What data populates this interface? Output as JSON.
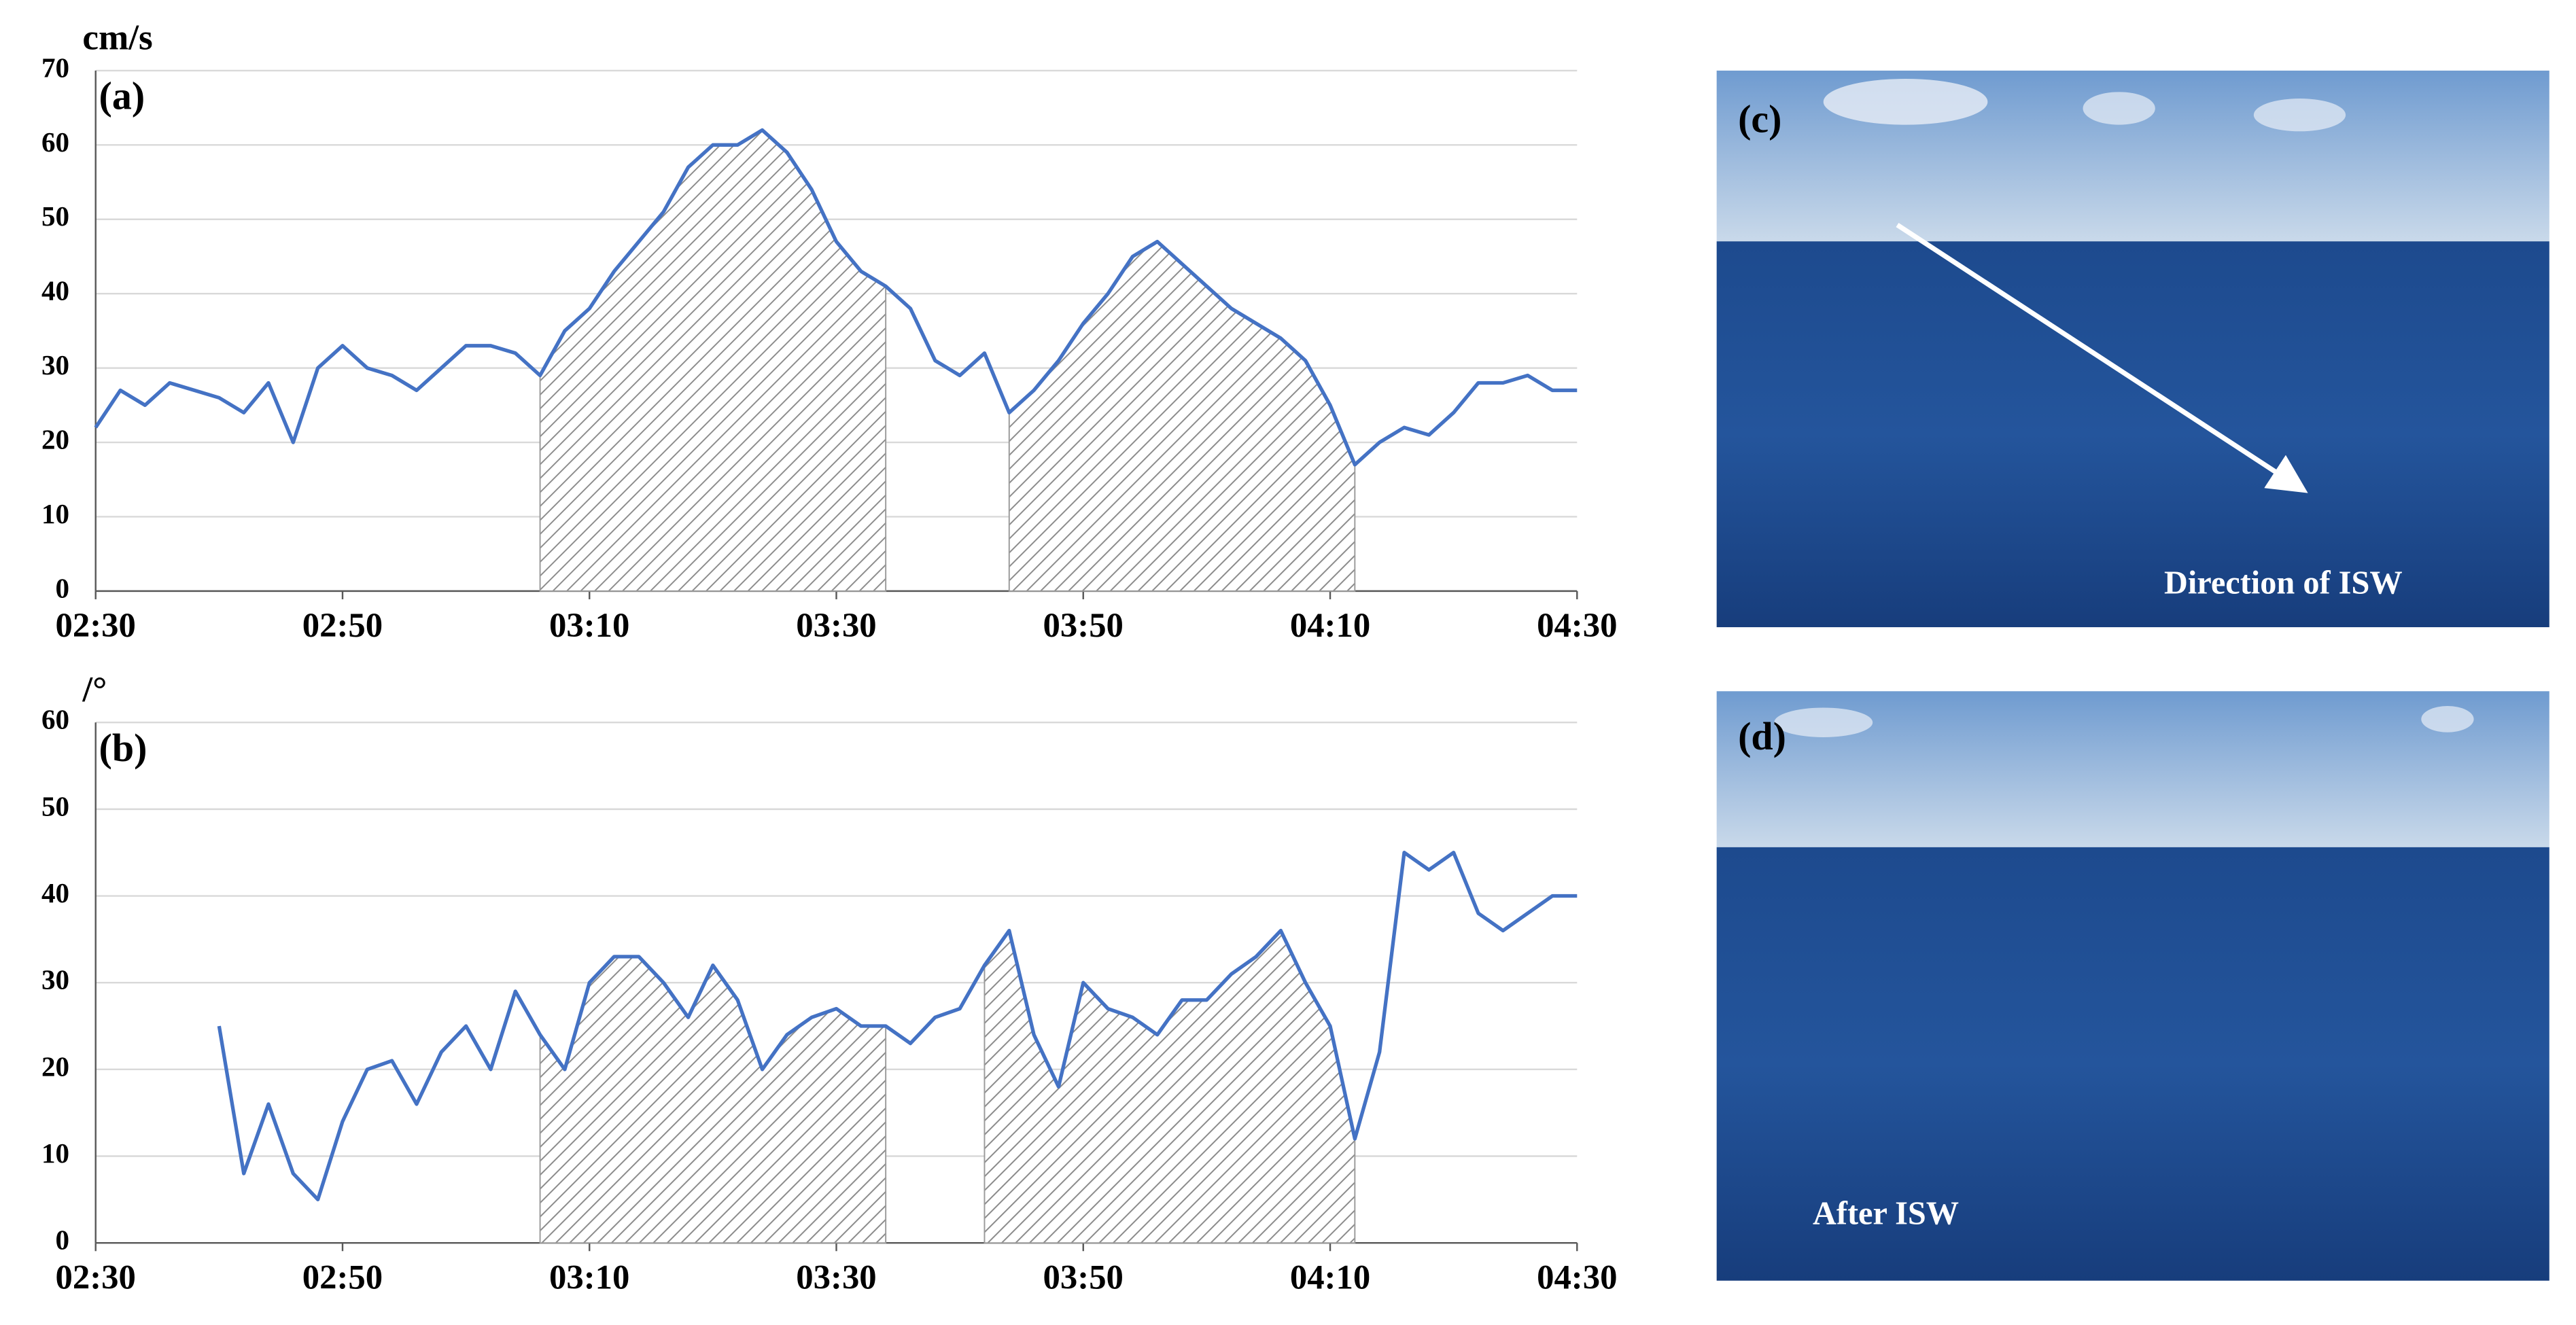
{
  "chart_data": [
    {
      "type": "line",
      "panel_label": "(a)",
      "y_label": "cm/s",
      "x": [
        "02:30",
        "02:32",
        "02:34",
        "02:36",
        "02:38",
        "02:40",
        "02:42",
        "02:44",
        "02:46",
        "02:48",
        "02:50",
        "02:52",
        "02:54",
        "02:56",
        "02:58",
        "03:00",
        "03:02",
        "03:04",
        "03:06",
        "03:08",
        "03:10",
        "03:12",
        "03:14",
        "03:16",
        "03:18",
        "03:20",
        "03:22",
        "03:24",
        "03:26",
        "03:28",
        "03:30",
        "03:32",
        "03:34",
        "03:36",
        "03:38",
        "03:40",
        "03:42",
        "03:44",
        "03:46",
        "03:48",
        "03:50",
        "03:52",
        "03:54",
        "03:56",
        "03:58",
        "04:00",
        "04:02",
        "04:04",
        "04:06",
        "04:08",
        "04:10",
        "04:12",
        "04:14",
        "04:16",
        "04:18",
        "04:20",
        "04:22",
        "04:24",
        "04:26",
        "04:28",
        "04:30"
      ],
      "series": [
        {
          "color": "#4472c4",
          "values": [
            22,
            27,
            25,
            28,
            27,
            26,
            24,
            28,
            20,
            30,
            33,
            30,
            29,
            27,
            30,
            33,
            33,
            32,
            29,
            35,
            38,
            43,
            47,
            51,
            57,
            60,
            60,
            62,
            59,
            54,
            47,
            43,
            41,
            38,
            31,
            29,
            32,
            24,
            27,
            31,
            36,
            40,
            45,
            47,
            44,
            41,
            38,
            36,
            34,
            31,
            25,
            17,
            20,
            22,
            21,
            24,
            28,
            28,
            29,
            27,
            27
          ]
        }
      ],
      "shaded": [
        [
          "03:06",
          "03:34"
        ],
        [
          "03:44",
          "04:12"
        ]
      ],
      "xlim": [
        "02:30",
        "04:30"
      ],
      "xticks": [
        "02:30",
        "02:50",
        "03:10",
        "03:30",
        "03:50",
        "04:10",
        "04:30"
      ],
      "ylim": [
        0,
        70
      ],
      "yticks": [
        0,
        10,
        20,
        30,
        40,
        50,
        60,
        70
      ],
      "grid": true
    },
    {
      "type": "line",
      "panel_label": "(b)",
      "y_label": "/°",
      "x": [
        "02:40",
        "02:42",
        "02:44",
        "02:46",
        "02:48",
        "02:50",
        "02:52",
        "02:54",
        "02:56",
        "02:58",
        "03:00",
        "03:02",
        "03:04",
        "03:06",
        "03:08",
        "03:10",
        "03:12",
        "03:14",
        "03:16",
        "03:18",
        "03:20",
        "03:22",
        "03:24",
        "03:26",
        "03:28",
        "03:30",
        "03:32",
        "03:34",
        "03:36",
        "03:38",
        "03:40",
        "03:42",
        "03:44",
        "03:46",
        "03:48",
        "03:50",
        "03:52",
        "03:54",
        "03:56",
        "03:58",
        "04:00",
        "04:02",
        "04:04",
        "04:06",
        "04:08",
        "04:10",
        "04:12",
        "04:14",
        "04:16",
        "04:18",
        "04:20",
        "04:22",
        "04:24",
        "04:26",
        "04:28",
        "04:30"
      ],
      "series": [
        {
          "color": "#4472c4",
          "values": [
            25,
            8,
            16,
            8,
            5,
            14,
            20,
            21,
            16,
            22,
            25,
            20,
            29,
            24,
            20,
            30,
            33,
            33,
            30,
            26,
            32,
            28,
            20,
            24,
            26,
            27,
            25,
            25,
            23,
            26,
            27,
            32,
            36,
            24,
            18,
            30,
            27,
            26,
            24,
            28,
            28,
            31,
            33,
            36,
            30,
            25,
            12,
            22,
            45,
            43,
            45,
            38,
            36,
            38,
            40,
            40
          ]
        }
      ],
      "shaded": [
        [
          "03:06",
          "03:34"
        ],
        [
          "03:42",
          "04:12"
        ]
      ],
      "xlim": [
        "02:30",
        "04:30"
      ],
      "xticks": [
        "02:30",
        "02:50",
        "03:10",
        "03:30",
        "03:50",
        "04:10",
        "04:30"
      ],
      "ylim": [
        0,
        60
      ],
      "yticks": [
        0,
        10,
        20,
        30,
        40,
        50,
        60
      ],
      "grid": true
    }
  ],
  "photos": [
    {
      "label": "(c)",
      "caption": "Direction of ISW"
    },
    {
      "label": "(d)",
      "caption": "After ISW"
    }
  ]
}
